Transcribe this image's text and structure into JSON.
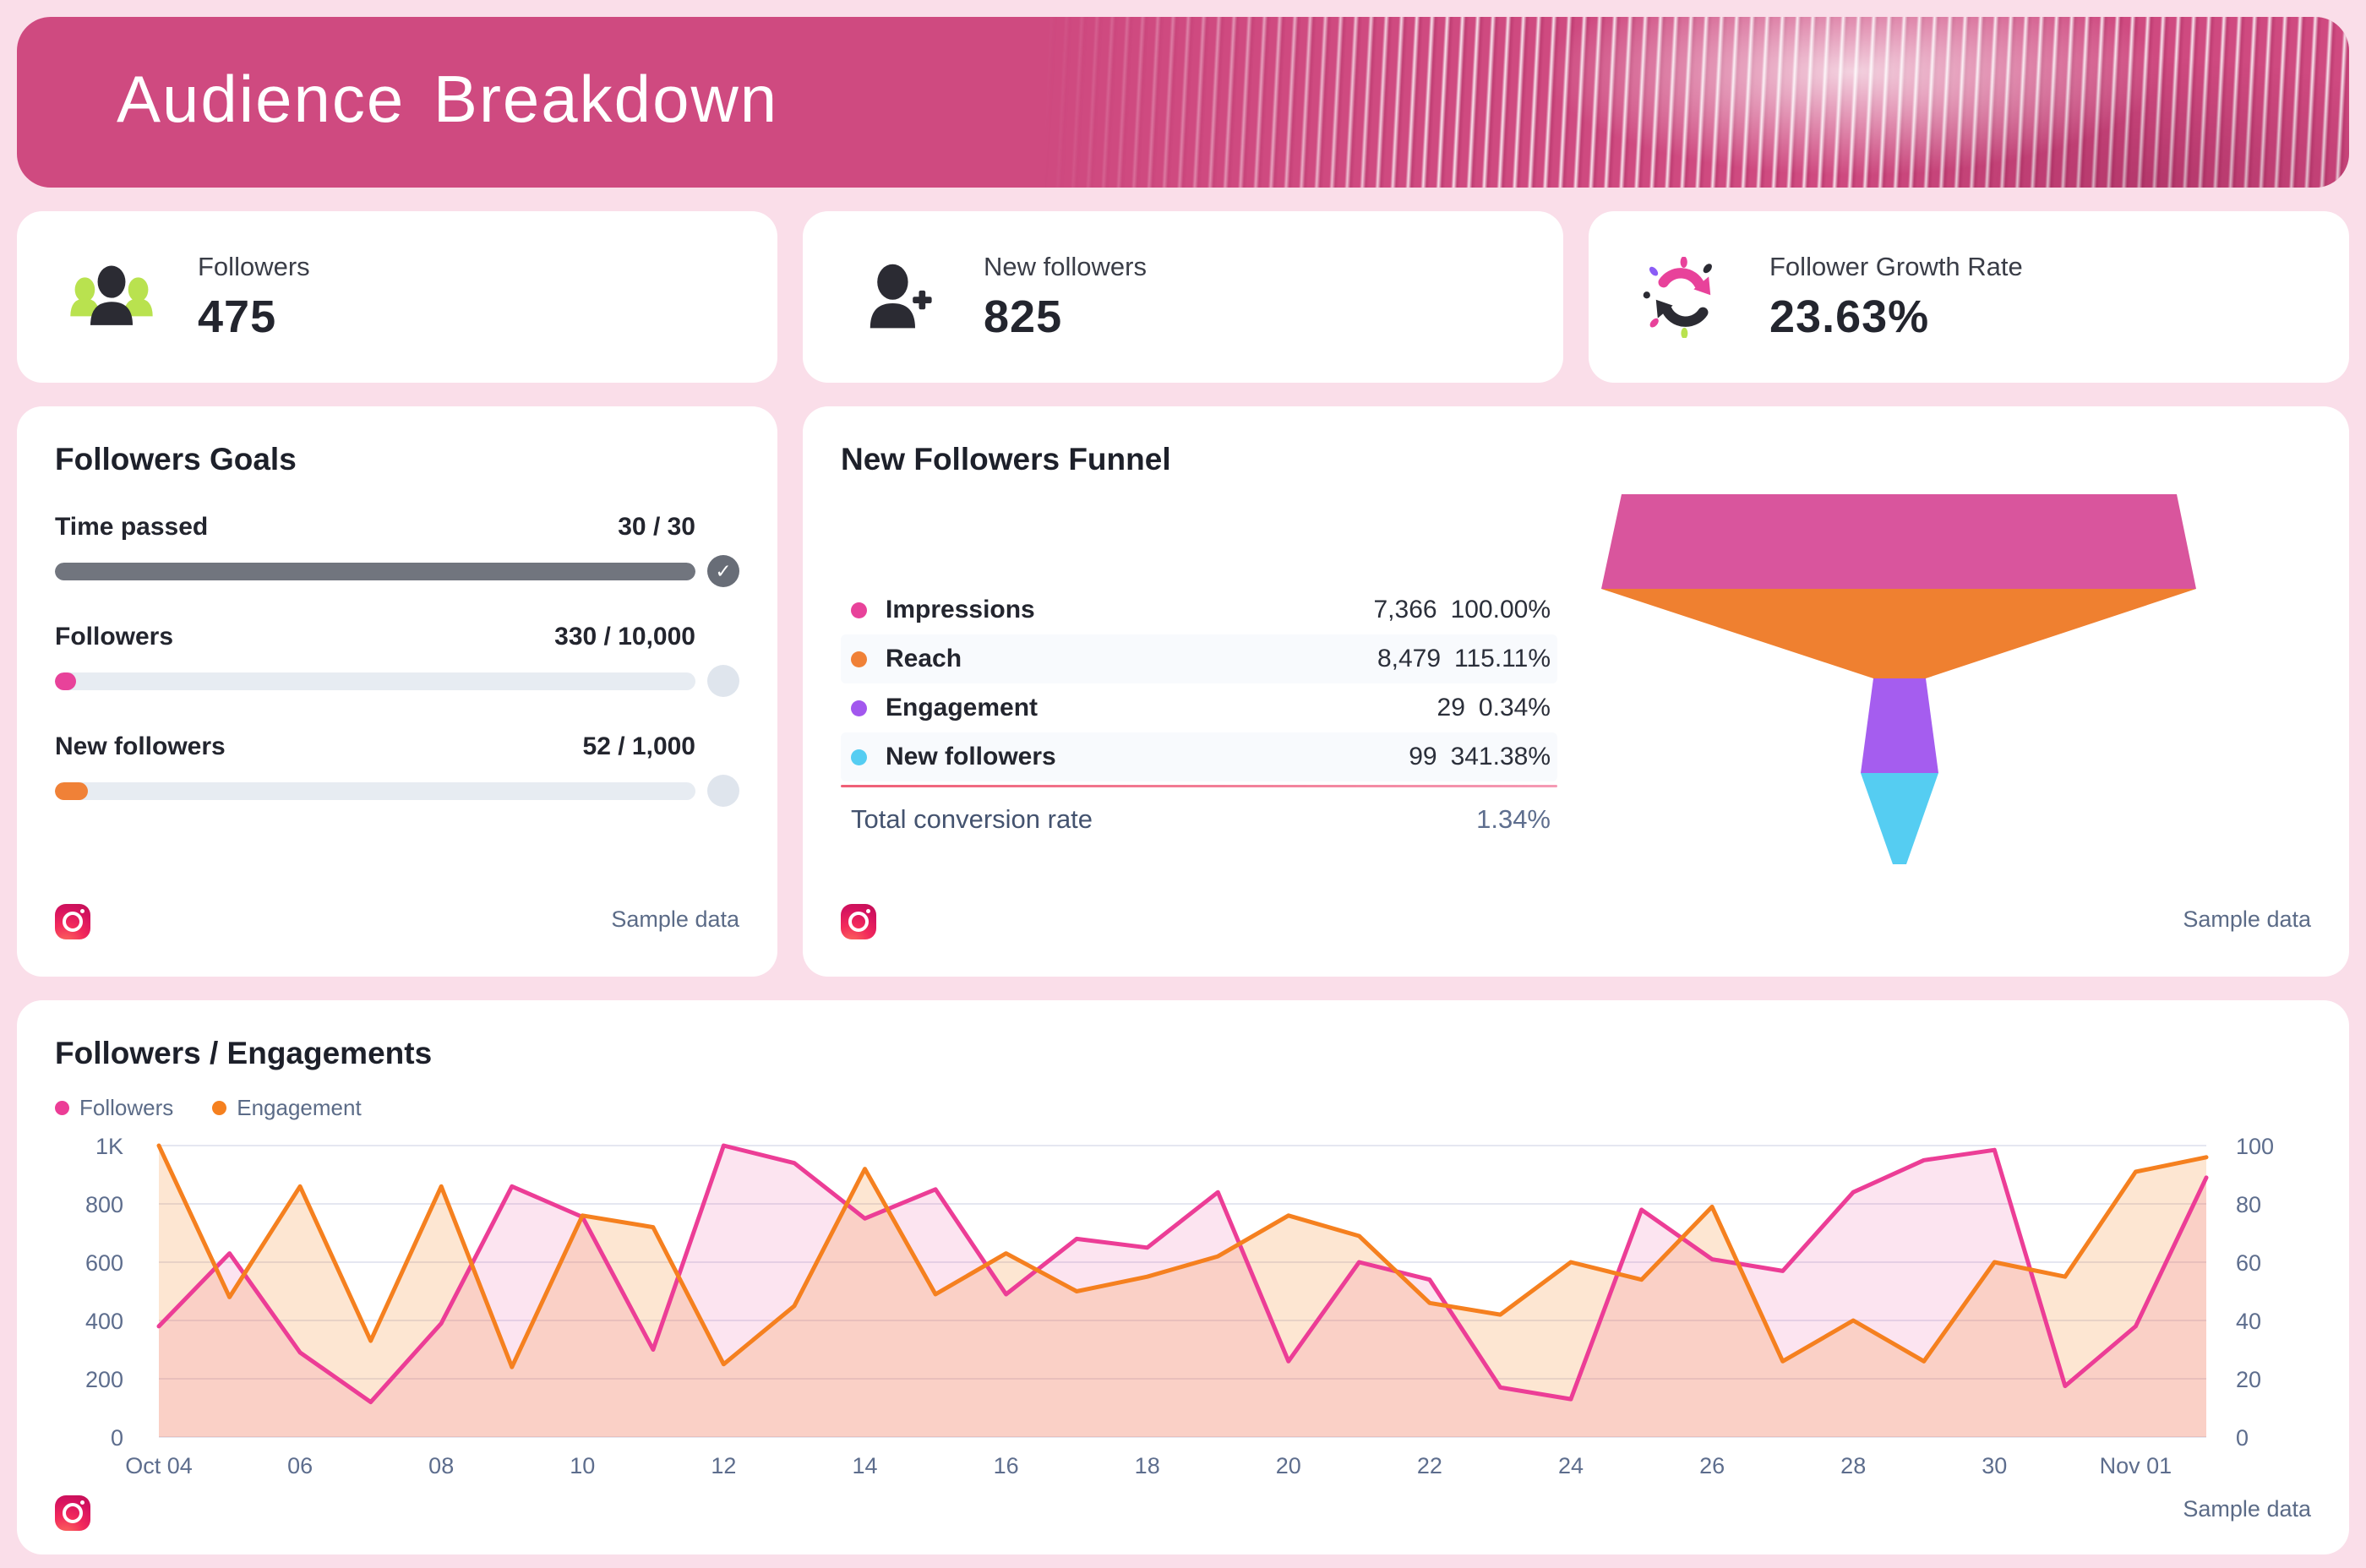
{
  "header": {
    "title": "Audience Breakdown"
  },
  "sample_note": "Sample data",
  "stats": [
    {
      "label": "Followers",
      "value": "475",
      "icon": "followers-group-icon"
    },
    {
      "label": "New followers",
      "value": "825",
      "icon": "person-add-icon"
    },
    {
      "label": "Follower Growth Rate",
      "value": "23.63%",
      "icon": "growth-cycle-icon"
    }
  ],
  "goals": {
    "title": "Followers Goals",
    "items": [
      {
        "label": "Time passed",
        "value": "30 / 30",
        "pct": 100,
        "color": "#71757e",
        "complete": true
      },
      {
        "label": "Followers",
        "value": "330 / 10,000",
        "pct": 3.3,
        "color": "#e8429a",
        "complete": false
      },
      {
        "label": "New followers",
        "value": "52 / 1,000",
        "pct": 5.2,
        "color": "#f08137",
        "complete": false
      }
    ]
  },
  "funnel": {
    "title": "New Followers Funnel",
    "rows": [
      {
        "label": "Impressions",
        "color": "#e8429a",
        "count": "7,366",
        "pct": "100.00%"
      },
      {
        "label": "Reach",
        "color": "#f08137",
        "count": "8,479",
        "pct": "115.11%"
      },
      {
        "label": "Engagement",
        "color": "#a257ee",
        "count": "29",
        "pct": "0.34%"
      },
      {
        "label": "New followers",
        "color": "#55cdf2",
        "count": "99",
        "pct": "341.38%"
      }
    ],
    "segment_colors": [
      "#d9559d",
      "#ef8030",
      "#a55def",
      "#55cdf2"
    ],
    "total_label": "Total conversion rate",
    "total_value": "1.34%"
  },
  "chart_data": {
    "type": "area",
    "title": "Followers / Engagements",
    "x": [
      "Oct 04",
      "Oct 05",
      "Oct 06",
      "Oct 07",
      "Oct 08",
      "Oct 09",
      "Oct 10",
      "Oct 11",
      "Oct 12",
      "Oct 13",
      "Oct 14",
      "Oct 15",
      "Oct 16",
      "Oct 17",
      "Oct 18",
      "Oct 19",
      "Oct 20",
      "Oct 21",
      "Oct 22",
      "Oct 23",
      "Oct 24",
      "Oct 25",
      "Oct 26",
      "Oct 27",
      "Oct 28",
      "Oct 29",
      "Oct 30",
      "Oct 31",
      "Nov 01",
      "Nov 02"
    ],
    "series": [
      {
        "name": "Followers",
        "axis": "left",
        "color": "#ec3d96",
        "values": [
          380,
          630,
          290,
          120,
          390,
          860,
          755,
          300,
          1000,
          940,
          750,
          850,
          490,
          680,
          650,
          840,
          260,
          600,
          540,
          170,
          130,
          780,
          610,
          570,
          840,
          950,
          985,
          175,
          380,
          890
        ]
      },
      {
        "name": "Engagement",
        "axis": "right",
        "color": "#f5801f",
        "values": [
          100,
          48,
          86,
          33,
          86,
          24,
          76,
          72,
          25,
          45,
          92,
          49,
          63,
          50,
          55,
          62,
          76,
          69,
          46,
          42,
          60,
          54,
          79,
          26,
          40,
          26,
          60,
          55,
          91,
          96
        ]
      }
    ],
    "left_axis": {
      "ticks": [
        "1K",
        "800",
        "600",
        "400",
        "200",
        "0"
      ],
      "min": 0,
      "max": 1000
    },
    "right_axis": {
      "ticks": [
        "100",
        "80",
        "60",
        "40",
        "20",
        "0"
      ],
      "min": 0,
      "max": 100
    },
    "x_tick_labels": [
      "Oct 04",
      "06",
      "08",
      "10",
      "12",
      "14",
      "16",
      "18",
      "20",
      "22",
      "24",
      "26",
      "28",
      "30",
      "Nov 01"
    ],
    "grid": true,
    "legend_position": "top-left"
  }
}
